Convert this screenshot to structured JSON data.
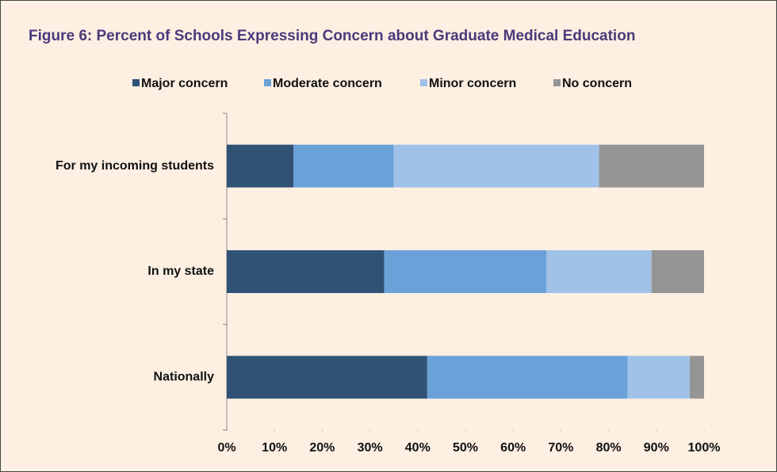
{
  "chart_data": {
    "type": "stacked_barh",
    "title": "Figure 6: Percent of Schools Expressing Concern about Graduate Medical Education",
    "categories": [
      "For my incoming students",
      "In my state",
      "Nationally"
    ],
    "series": [
      {
        "name": "Major concern",
        "color": "#2f5275",
        "values": [
          14,
          33,
          42
        ]
      },
      {
        "name": "Moderate concern",
        "color": "#6aa1d8",
        "values": [
          21,
          34,
          42
        ]
      },
      {
        "name": "Minor concern",
        "color": "#a0c2e8",
        "values": [
          43,
          22,
          13
        ]
      },
      {
        "name": "No concern",
        "color": "#959595",
        "values": [
          22,
          11,
          3
        ]
      }
    ],
    "xlim": [
      0,
      100
    ],
    "xticks": [
      {
        "value": 0,
        "label": "0%"
      },
      {
        "value": 10,
        "label": "10%"
      },
      {
        "value": 20,
        "label": "20%"
      },
      {
        "value": 30,
        "label": "30%"
      },
      {
        "value": 40,
        "label": "40%"
      },
      {
        "value": 50,
        "label": "50%"
      },
      {
        "value": 60,
        "label": "60%"
      },
      {
        "value": 70,
        "label": "70%"
      },
      {
        "value": 80,
        "label": "80%"
      },
      {
        "value": 90,
        "label": "90%"
      },
      {
        "value": 100,
        "label": "100%"
      }
    ],
    "legend": "top"
  }
}
